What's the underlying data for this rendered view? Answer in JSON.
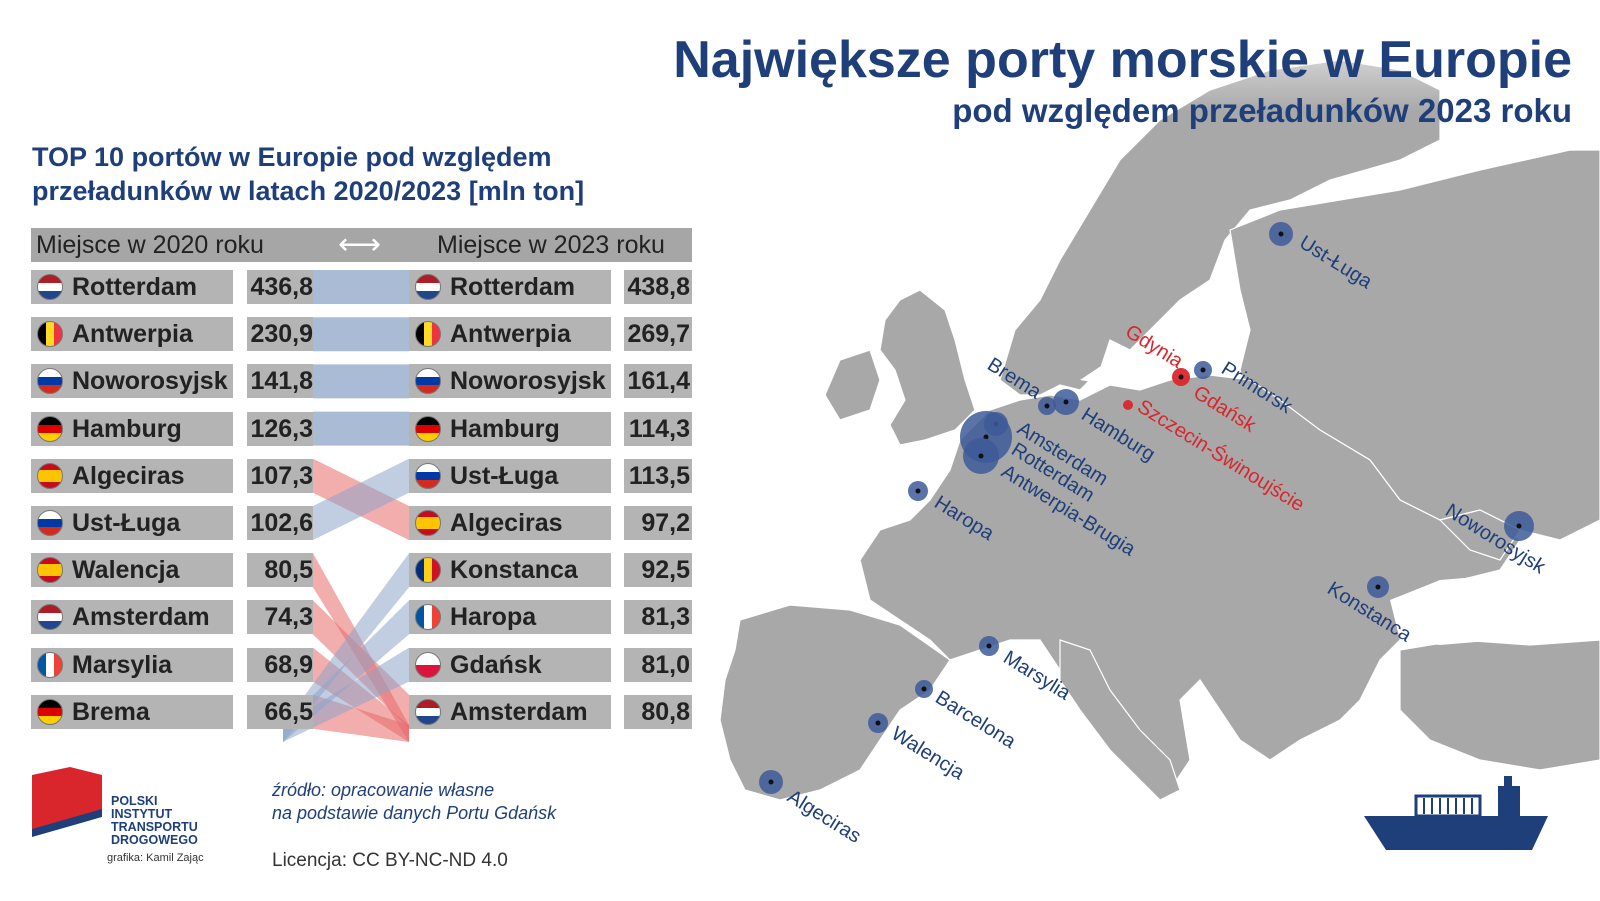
{
  "title": "Największe porty morskie w Europie",
  "subtitle": "pod względem przeładunków 2023 roku",
  "table_title_line1": "TOP 10 portów w Europie pod względem",
  "table_title_line2": "przeładunków w latach 2020/2023 [mln ton]",
  "header_left": "Miejsce w 2020 roku",
  "header_right": "Miejsce w 2023 roku",
  "header_arrow": "⟷",
  "source_line1": "źródło: opracowanie własne",
  "source_line2": "na podstawie danych Portu Gdańsk",
  "license": "Licencja: CC BY-NC-ND 4.0",
  "logo_lines": [
    "POLSKI",
    "INSTYTUT",
    "TRANSPORTU",
    "DROGOWEGO"
  ],
  "credit": "grafika: Kamil Zając",
  "colors": {
    "title": "#1f3f7a",
    "port_dot": "#3d5a99",
    "polish_port": "#d9262c",
    "link_up": "#8ea4c8",
    "link_down": "#e86a6a",
    "land": "#a8a8a8"
  },
  "chart_data": {
    "type": "table",
    "unit": "mln ton",
    "ranking_2020": [
      {
        "port": "Rotterdam",
        "value": "436,8",
        "flag": "nl"
      },
      {
        "port": "Antwerpia",
        "value": "230,9",
        "flag": "be"
      },
      {
        "port": "Noworosyjsk",
        "value": "141,8",
        "flag": "ru"
      },
      {
        "port": "Hamburg",
        "value": "126,3",
        "flag": "de"
      },
      {
        "port": "Algeciras",
        "value": "107,3",
        "flag": "es"
      },
      {
        "port": "Ust-Ługa",
        "value": "102,6",
        "flag": "ru"
      },
      {
        "port": "Walencja",
        "value": "80,5",
        "flag": "es"
      },
      {
        "port": "Amsterdam",
        "value": "74,3",
        "flag": "nl"
      },
      {
        "port": "Marsylia",
        "value": "68,9",
        "flag": "fr"
      },
      {
        "port": "Brema",
        "value": "66,5",
        "flag": "de"
      }
    ],
    "ranking_2023": [
      {
        "port": "Rotterdam",
        "value": "438,8",
        "flag": "nl"
      },
      {
        "port": "Antwerpia",
        "value": "269,7",
        "flag": "be"
      },
      {
        "port": "Noworosyjsk",
        "value": "161,4",
        "flag": "ru"
      },
      {
        "port": "Hamburg",
        "value": "114,3",
        "flag": "de"
      },
      {
        "port": "Ust-Ługa",
        "value": "113,5",
        "flag": "ru"
      },
      {
        "port": "Algeciras",
        "value": "97,2",
        "flag": "es"
      },
      {
        "port": "Konstanca",
        "value": "92,5",
        "flag": "ro"
      },
      {
        "port": "Haropa",
        "value": "81,3",
        "flag": "fr"
      },
      {
        "port": "Gdańsk",
        "value": "81,0",
        "flag": "pl"
      },
      {
        "port": "Amsterdam",
        "value": "80,8",
        "flag": "nl"
      }
    ],
    "map_ports": [
      {
        "name": "Ust-Ługa",
        "type": "major"
      },
      {
        "name": "Primorsk",
        "type": "major"
      },
      {
        "name": "Gdynia",
        "type": "polish"
      },
      {
        "name": "Gdańsk",
        "type": "polish"
      },
      {
        "name": "Szczecin-Świnoujście",
        "type": "polish"
      },
      {
        "name": "Brema",
        "type": "major"
      },
      {
        "name": "Hamburg",
        "type": "major"
      },
      {
        "name": "Amsterdam",
        "type": "major"
      },
      {
        "name": "Rotterdam",
        "type": "major"
      },
      {
        "name": "Antwerpia-Brugia",
        "type": "major"
      },
      {
        "name": "Haropa",
        "type": "major"
      },
      {
        "name": "Noworosyjsk",
        "type": "major"
      },
      {
        "name": "Konstanca",
        "type": "major"
      },
      {
        "name": "Marsylia",
        "type": "major"
      },
      {
        "name": "Barcelona",
        "type": "major"
      },
      {
        "name": "Walencja",
        "type": "major"
      },
      {
        "name": "Algeciras",
        "type": "major"
      }
    ]
  }
}
